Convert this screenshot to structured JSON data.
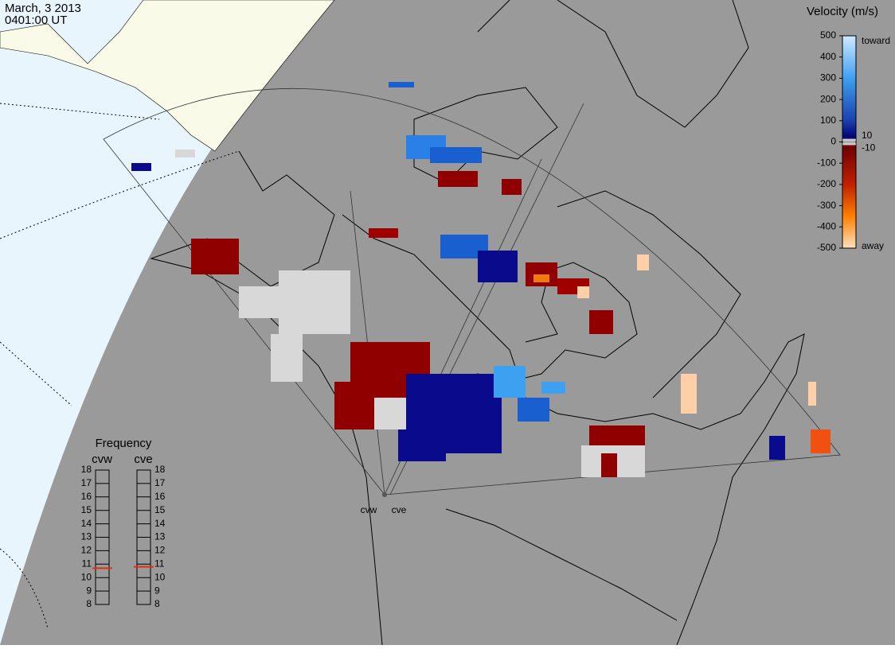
{
  "header": {
    "date": "March, 3 2013",
    "time": "0401:00 UT"
  },
  "velocity_legend": {
    "title": "Velocity (m/s)",
    "lim": [
      -500,
      500
    ],
    "ticks": [
      500,
      400,
      300,
      200,
      100,
      0,
      -100,
      -200,
      -300,
      -400,
      -500
    ],
    "inner_ticks": [
      10,
      -10
    ],
    "top_label": "toward",
    "bottom_label": "away"
  },
  "frequency_panel": {
    "title": "Frequency",
    "lim": [
      8,
      18
    ],
    "ticks": [
      18,
      17,
      16,
      15,
      14,
      13,
      12,
      11,
      10,
      9,
      8
    ],
    "radars": [
      {
        "name": "cvw",
        "frequency": 10.7
      },
      {
        "name": "cve",
        "frequency": 10.8
      }
    ]
  },
  "sites": [
    "cvw",
    "cve"
  ]
}
